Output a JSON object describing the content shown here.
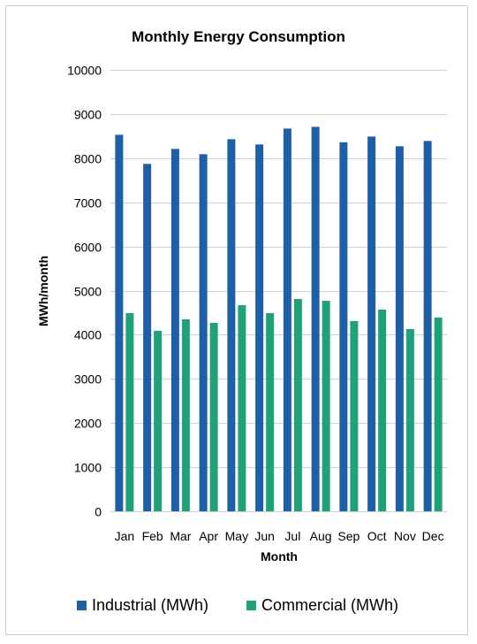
{
  "chart_data": {
    "type": "bar",
    "title": "Monthly Energy Consumption",
    "xlabel": "Month",
    "ylabel": "MWh/month",
    "categories": [
      "Jan",
      "Feb",
      "Mar",
      "Apr",
      "May",
      "Jun",
      "Jul",
      "Aug",
      "Sep",
      "Oct",
      "Nov",
      "Dec"
    ],
    "series": [
      {
        "name": "Industrial (MWh)",
        "color": "#1f5fa6",
        "values": [
          8530,
          7870,
          8210,
          8090,
          8430,
          8310,
          8670,
          8710,
          8360,
          8490,
          8270,
          8390
        ]
      },
      {
        "name": "Commercial (MWh)",
        "color": "#1fa27a",
        "values": [
          4490,
          4090,
          4350,
          4270,
          4670,
          4490,
          4810,
          4770,
          4310,
          4570,
          4130,
          4390
        ]
      }
    ],
    "ylim": [
      0,
      10000
    ],
    "yticks": [
      0,
      1000,
      2000,
      3000,
      4000,
      5000,
      6000,
      7000,
      8000,
      9000,
      10000
    ],
    "grid": true,
    "legend": "bottom",
    "gridline_color": "#d0d0d0"
  }
}
